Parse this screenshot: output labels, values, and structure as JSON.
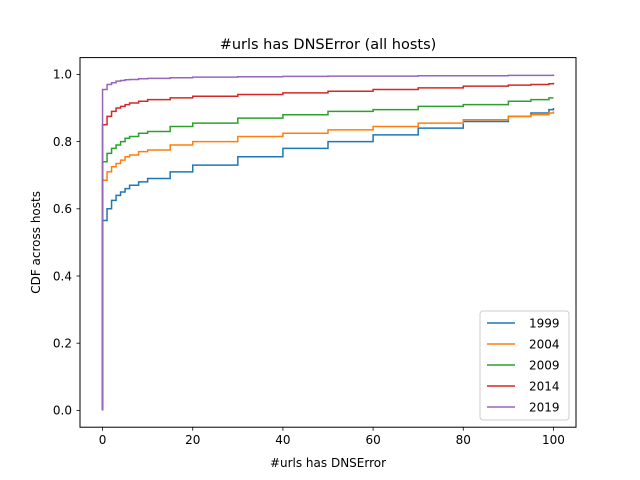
{
  "chart_data": {
    "type": "line",
    "title": "#urls has DNSError (all hosts)",
    "xlabel": "#urls has DNSError",
    "ylabel": "CDF across hosts",
    "xlim": [
      -5,
      105
    ],
    "ylim": [
      -0.05,
      1.05
    ],
    "xticks": [
      0,
      20,
      40,
      60,
      80,
      100
    ],
    "yticks": [
      0.0,
      0.2,
      0.4,
      0.6,
      0.8,
      1.0
    ],
    "xtick_labels": [
      "0",
      "20",
      "40",
      "60",
      "80",
      "100"
    ],
    "ytick_labels": [
      "0.0",
      "0.2",
      "0.4",
      "0.6",
      "0.8",
      "1.0"
    ],
    "grid": false,
    "legend_position": "lower-right",
    "step": true,
    "series": [
      {
        "name": "1999",
        "color": "#1f77b4",
        "x": [
          0,
          1,
          2,
          3,
          4,
          5,
          6,
          8,
          10,
          15,
          20,
          30,
          40,
          50,
          60,
          70,
          80,
          90,
          95,
          99,
          100
        ],
        "y": [
          0.565,
          0.6,
          0.625,
          0.64,
          0.65,
          0.66,
          0.67,
          0.68,
          0.69,
          0.71,
          0.73,
          0.755,
          0.78,
          0.8,
          0.82,
          0.84,
          0.86,
          0.875,
          0.885,
          0.895,
          0.9
        ]
      },
      {
        "name": "2004",
        "color": "#ff7f0e",
        "x": [
          0,
          1,
          2,
          3,
          4,
          5,
          6,
          8,
          10,
          15,
          20,
          30,
          40,
          50,
          60,
          70,
          80,
          90,
          95,
          99,
          100
        ],
        "y": [
          0.685,
          0.71,
          0.725,
          0.735,
          0.745,
          0.755,
          0.76,
          0.77,
          0.775,
          0.79,
          0.8,
          0.815,
          0.825,
          0.835,
          0.845,
          0.855,
          0.865,
          0.875,
          0.88,
          0.885,
          0.89
        ]
      },
      {
        "name": "2009",
        "color": "#2ca02c",
        "x": [
          0,
          1,
          2,
          3,
          4,
          5,
          6,
          8,
          10,
          15,
          20,
          30,
          40,
          50,
          60,
          70,
          80,
          90,
          95,
          99,
          100
        ],
        "y": [
          0.74,
          0.765,
          0.78,
          0.79,
          0.8,
          0.81,
          0.815,
          0.825,
          0.83,
          0.845,
          0.855,
          0.87,
          0.88,
          0.89,
          0.895,
          0.905,
          0.91,
          0.92,
          0.925,
          0.93,
          0.93
        ]
      },
      {
        "name": "2014",
        "color": "#d62728",
        "x": [
          0,
          1,
          2,
          3,
          4,
          5,
          6,
          8,
          10,
          15,
          20,
          30,
          40,
          50,
          60,
          70,
          80,
          90,
          95,
          99,
          100
        ],
        "y": [
          0.85,
          0.875,
          0.89,
          0.9,
          0.905,
          0.91,
          0.915,
          0.92,
          0.925,
          0.93,
          0.935,
          0.94,
          0.945,
          0.95,
          0.955,
          0.96,
          0.965,
          0.968,
          0.97,
          0.972,
          0.975
        ]
      },
      {
        "name": "2019",
        "color": "#9467bd",
        "x": [
          0,
          1,
          2,
          3,
          4,
          5,
          6,
          8,
          10,
          15,
          20,
          30,
          40,
          50,
          60,
          70,
          80,
          90,
          95,
          99,
          100
        ],
        "y": [
          0.955,
          0.97,
          0.975,
          0.98,
          0.982,
          0.984,
          0.985,
          0.987,
          0.988,
          0.99,
          0.992,
          0.993,
          0.994,
          0.995,
          0.995,
          0.996,
          0.996,
          0.997,
          0.997,
          0.997,
          1.0
        ]
      }
    ]
  }
}
